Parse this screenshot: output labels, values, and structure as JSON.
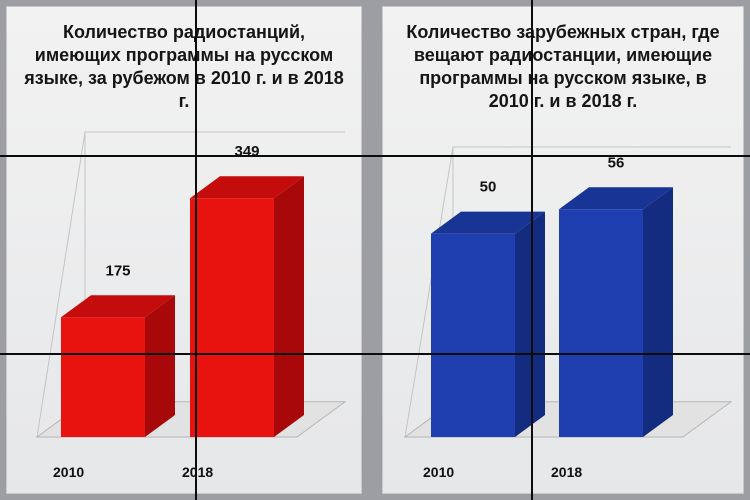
{
  "chart_data": [
    {
      "type": "bar",
      "title": "Количество радиостанций, имеющих программы на русском языке, за рубежом в 2010 г. и в 2018 г.",
      "categories": [
        "2010",
        "2018"
      ],
      "values": [
        175,
        349
      ],
      "value_labels": [
        "175",
        "349"
      ],
      "ylim": [
        0,
        380
      ],
      "grid": false,
      "color": "#e8120e",
      "side_color": "#a8080a",
      "top_color": "#c40c0c",
      "style": "3d"
    },
    {
      "type": "bar",
      "title": "Количество зарубежных стран, где вещают радиостанции, имеющие программы на русском языке, в 2010 г. и в 2018 г.",
      "categories": [
        "2010",
        "2018"
      ],
      "values": [
        50,
        56
      ],
      "value_labels": [
        "50",
        "56"
      ],
      "ylim": [
        0,
        60
      ],
      "grid": false,
      "color": "#1f3fb0",
      "side_color": "#142c80",
      "top_color": "#183494",
      "style": "3d"
    }
  ]
}
